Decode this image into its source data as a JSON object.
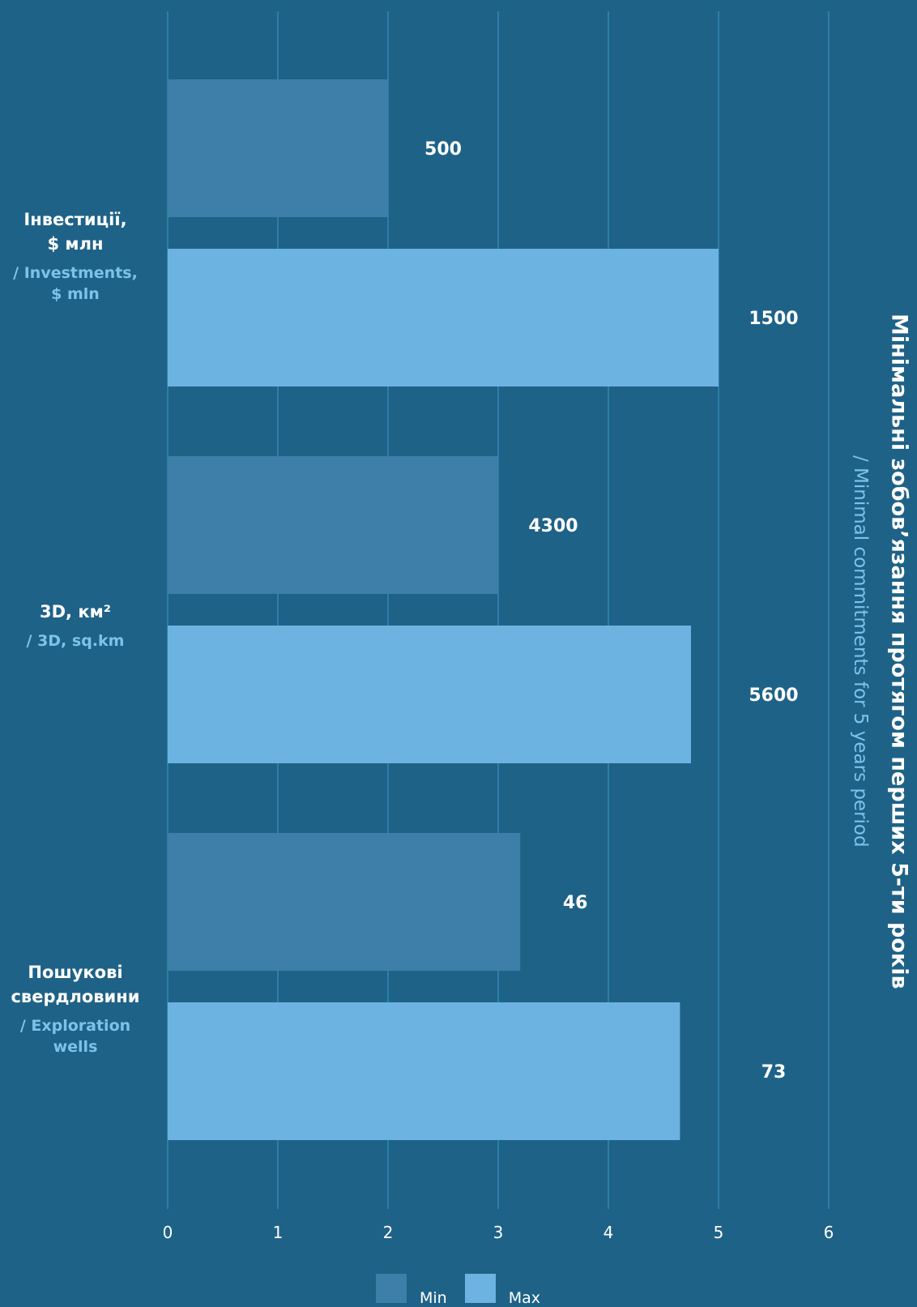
{
  "colors": {
    "background": "#1f6287",
    "grid": "#2b7fa8",
    "min": "#3d7fa8",
    "max": "#6cb3e1",
    "subtitle": "#7cc3ea",
    "text": "#ffffff"
  },
  "title": {
    "ua": "Мінімальні зобов’язання протягом перших 5-ти років",
    "en": "/ Minimal commitments for 5 years period"
  },
  "categories": [
    {
      "ua_lines": [
        "Інвестиції,",
        "$ млн"
      ],
      "en_lines": [
        "/ Investments,",
        "$ mln"
      ]
    },
    {
      "ua_lines": [
        "3D, км²"
      ],
      "en_lines": [
        "/ 3D, sq.km"
      ]
    },
    {
      "ua_lines": [
        "Пошукові",
        "свердловини"
      ],
      "en_lines": [
        "/ Exploration",
        "wells"
      ]
    }
  ],
  "legend": [
    {
      "key": "min",
      "label": "Min"
    },
    {
      "key": "max",
      "label": "Max"
    }
  ],
  "chart_data": {
    "type": "bar",
    "orientation": "horizontal",
    "categories": [
      "Інвестиції, $ млн",
      "3D, км²",
      "Пошукові свердловини"
    ],
    "series": [
      {
        "name": "Min",
        "values": [
          2.0,
          3.0,
          3.2
        ],
        "labels": [
          "500",
          "4300",
          "46"
        ]
      },
      {
        "name": "Max",
        "values": [
          5.0,
          4.75,
          4.65
        ],
        "labels": [
          "1500",
          "5600",
          "73"
        ]
      }
    ],
    "xlim": [
      0,
      6
    ],
    "xticks": [
      "0",
      "1",
      "2",
      "3",
      "4",
      "5",
      "6"
    ],
    "grid": true,
    "legend_position": "bottom-center"
  }
}
